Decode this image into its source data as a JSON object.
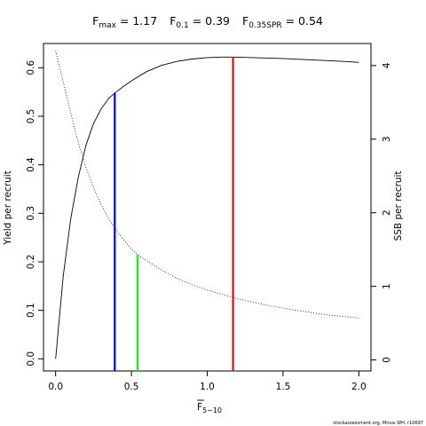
{
  "chart_data": {
    "type": "line",
    "title_parts": [
      {
        "main": "F",
        "sub": "max",
        "rest": " = 1.17"
      },
      {
        "main": "F",
        "sub": "0.1",
        "rest": " = 0.39"
      },
      {
        "main": "F",
        "sub": "0.35SPR",
        "rest": " = 0.54"
      }
    ],
    "xlabel": {
      "main": "F",
      "sub": "5−10"
    },
    "ylabel": "Yield per recruit",
    "y2label": "SSB per recruit",
    "xlim": [
      -0.08,
      2.08
    ],
    "ylim": [
      -0.025,
      0.65
    ],
    "y2lim": [
      -0.15,
      4.3
    ],
    "xticks": [
      0.0,
      0.5,
      1.0,
      1.5,
      2.0
    ],
    "xtick_labels": [
      "0.0",
      "0.5",
      "1.0",
      "1.5",
      "2.0"
    ],
    "yticks": [
      0.0,
      0.1,
      0.2,
      0.3,
      0.4,
      0.5,
      0.6
    ],
    "ytick_labels": [
      "0.0",
      "0.1",
      "0.2",
      "0.3",
      "0.4",
      "0.5",
      "0.6"
    ],
    "y2ticks": [
      0,
      1,
      2,
      3,
      4
    ],
    "y2tick_labels": [
      "0",
      "1",
      "2",
      "3",
      "4"
    ],
    "series": [
      {
        "axis": "left",
        "style": "solid",
        "color": "#000000",
        "x": [
          0.0,
          0.05,
          0.1,
          0.15,
          0.2,
          0.25,
          0.3,
          0.35,
          0.39,
          0.45,
          0.5,
          0.6,
          0.7,
          0.8,
          0.9,
          1.0,
          1.1,
          1.17,
          1.3,
          1.5,
          1.7,
          1.9,
          2.0
        ],
        "y": [
          0.0,
          0.17,
          0.29,
          0.375,
          0.44,
          0.485,
          0.515,
          0.537,
          0.548,
          0.562,
          0.573,
          0.592,
          0.605,
          0.613,
          0.618,
          0.621,
          0.622,
          0.622,
          0.621,
          0.619,
          0.616,
          0.613,
          0.611
        ]
      },
      {
        "axis": "right",
        "style": "dotted",
        "color": "#000000",
        "x": [
          0.0,
          0.05,
          0.1,
          0.15,
          0.2,
          0.25,
          0.3,
          0.35,
          0.4,
          0.45,
          0.5,
          0.54,
          0.6,
          0.7,
          0.8,
          0.9,
          1.0,
          1.2,
          1.4,
          1.6,
          1.8,
          2.0
        ],
        "y": [
          4.2,
          3.78,
          3.35,
          2.95,
          2.62,
          2.34,
          2.11,
          1.92,
          1.76,
          1.63,
          1.51,
          1.43,
          1.35,
          1.22,
          1.11,
          1.02,
          0.95,
          0.83,
          0.74,
          0.67,
          0.61,
          0.57
        ]
      }
    ],
    "reference_lines": [
      {
        "label": "F0.1",
        "x": 0.39,
        "y_top": 0.548,
        "axis": "left",
        "color": "#0000ff"
      },
      {
        "label": "F0.35SPR",
        "x": 0.54,
        "y_top": 1.43,
        "axis": "right",
        "color": "#00ff00"
      },
      {
        "label": "Fmax",
        "x": 1.17,
        "y_top": 0.622,
        "axis": "left",
        "color": "#ff0000"
      }
    ]
  },
  "footer": "stockassessment.org, Minus WH, r10697"
}
